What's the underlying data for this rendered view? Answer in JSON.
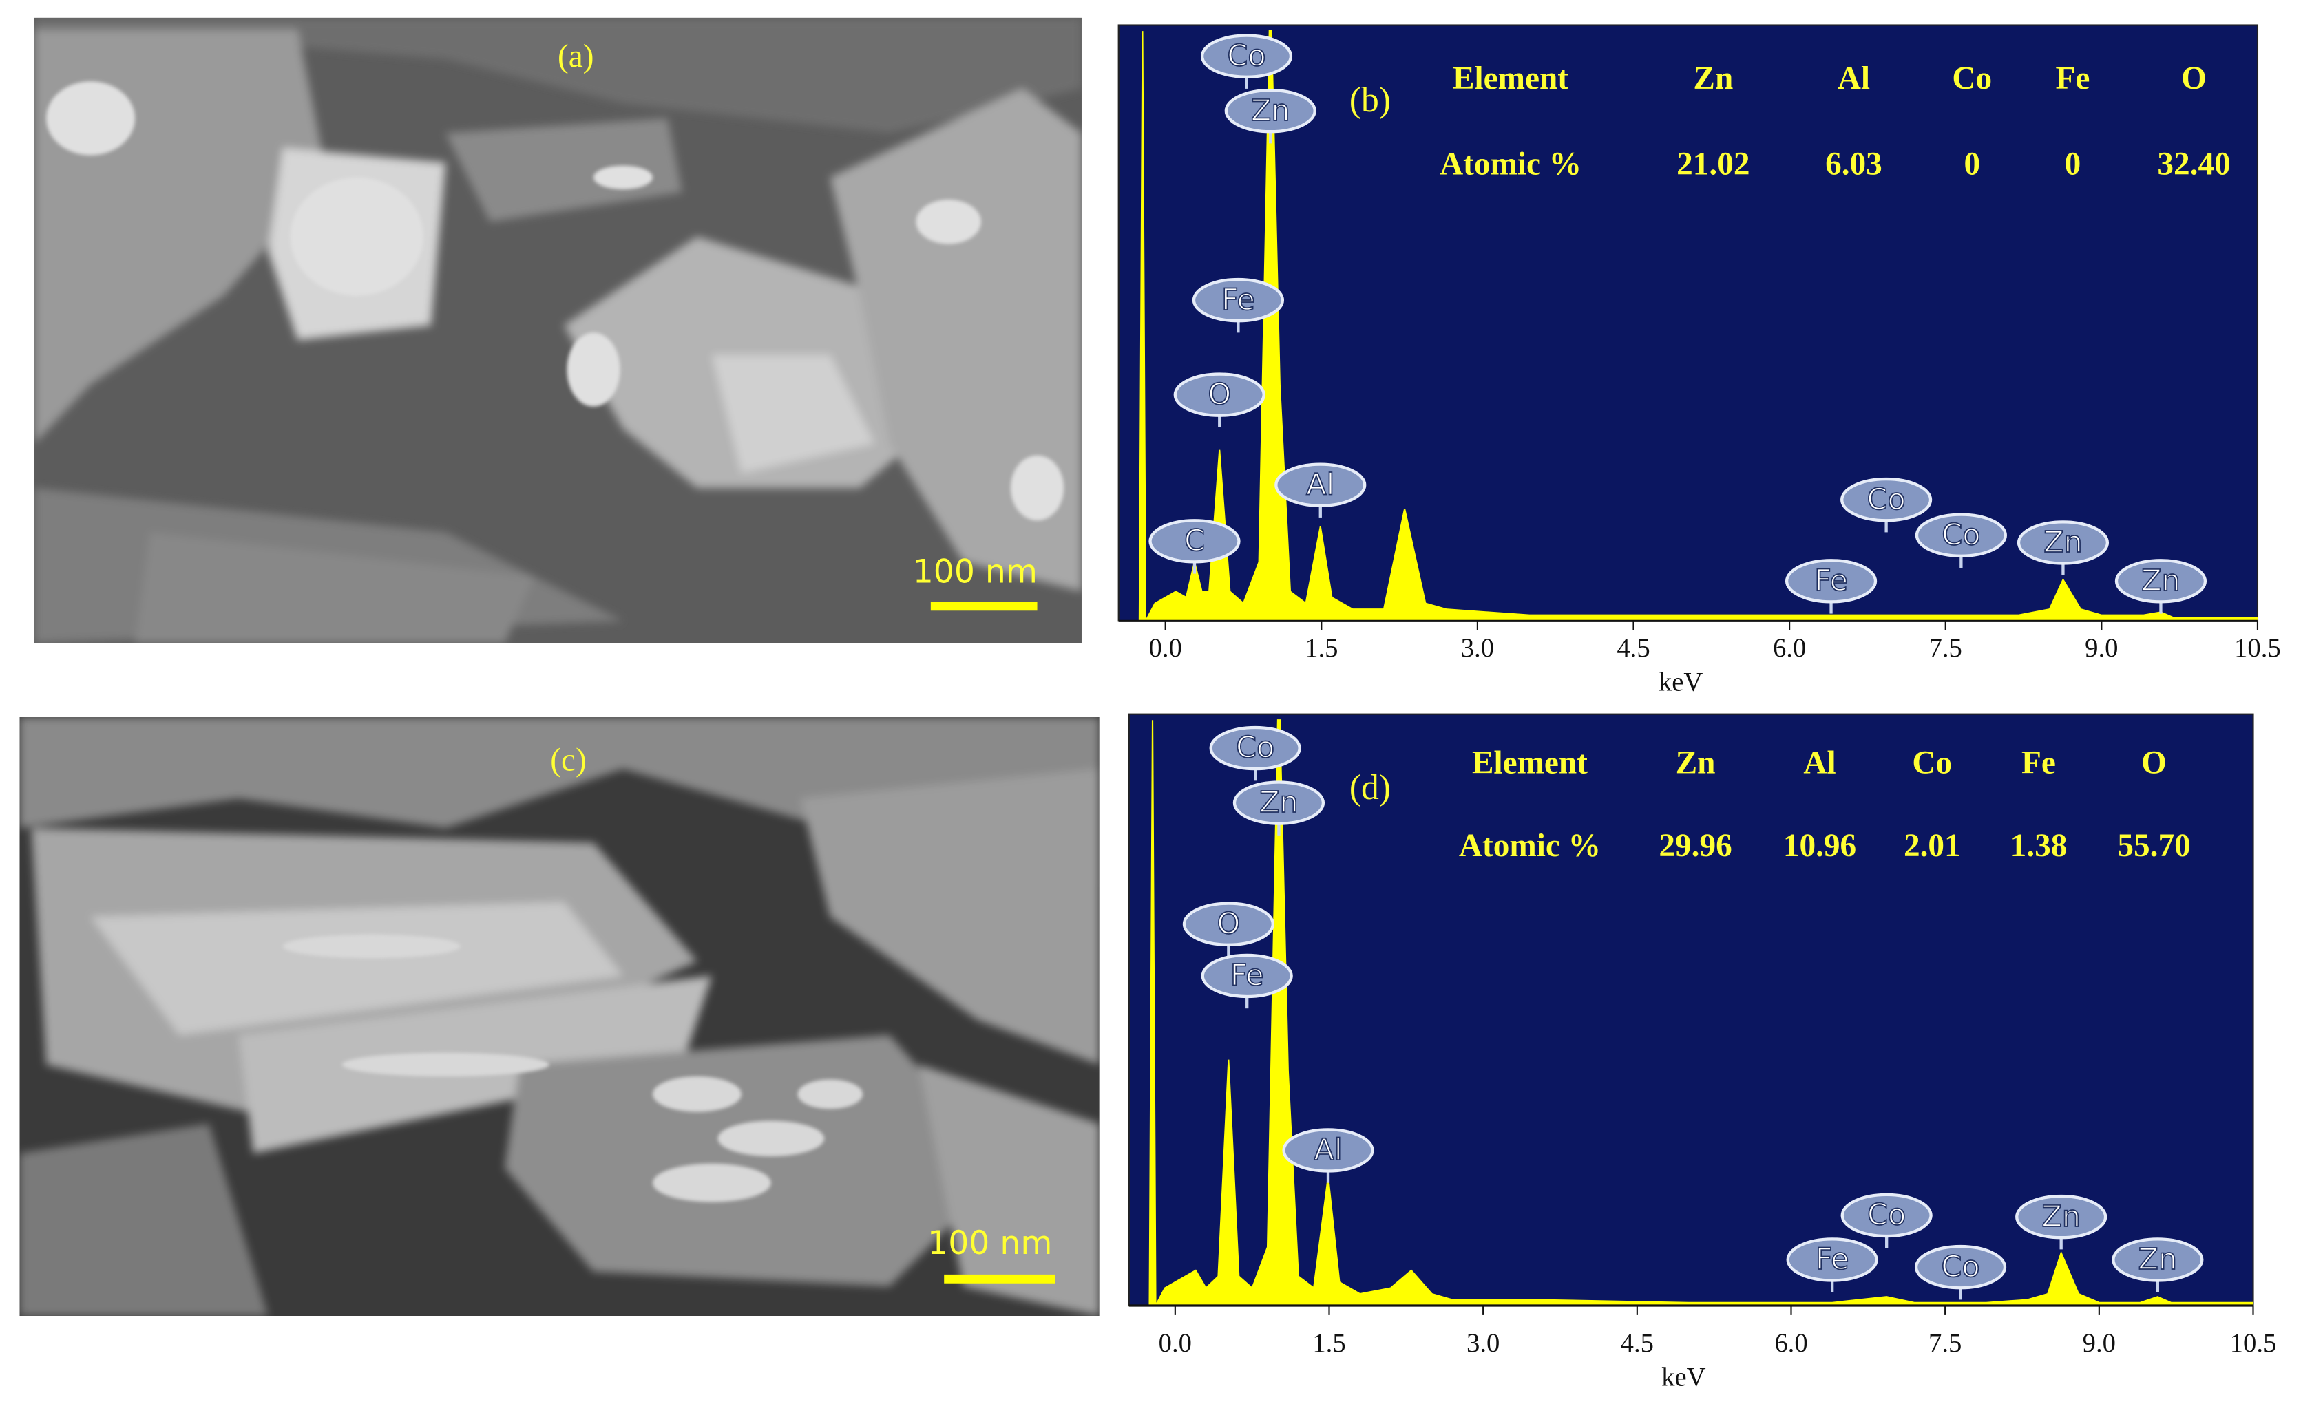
{
  "images": [
    {
      "label": "(a)",
      "scale_bar": "100 nm"
    },
    {
      "label": "(c)",
      "scale_bar": "100 nm"
    }
  ],
  "chart_data": [
    {
      "type": "area",
      "label": "(b)",
      "x_label": "keV",
      "color": "#ffff00",
      "background": "#0b1660",
      "x": [
        -0.45,
        -0.25,
        -0.22,
        -0.19,
        -0.1,
        0.1,
        0.2,
        0.28,
        0.35,
        0.42,
        0.52,
        0.62,
        0.75,
        0.9,
        1.0,
        1.02,
        1.1,
        1.2,
        1.35,
        1.49,
        1.6,
        1.8,
        2.1,
        2.3,
        2.5,
        2.7,
        3.5,
        5,
        7,
        7.9,
        8.2,
        8.5,
        8.63,
        8.8,
        9.0,
        9.4,
        9.57,
        9.7,
        10.5
      ],
      "values": [
        0,
        0,
        100,
        0,
        3,
        5,
        4,
        10,
        5,
        5,
        29,
        5,
        3,
        10,
        100,
        100,
        40,
        5,
        3,
        16,
        4,
        2,
        2,
        19,
        3,
        2,
        1,
        1,
        1,
        1,
        1,
        2,
        7,
        2,
        1,
        1,
        1.5,
        0.5,
        0.5
      ],
      "xlim": [
        -0.45,
        10.5
      ],
      "ylim": [
        0,
        100
      ],
      "xticks": [
        {
          "value": 0,
          "label": "0.0"
        },
        {
          "value": 1.5,
          "label": "1.5"
        },
        {
          "value": 3,
          "label": "3.0"
        },
        {
          "value": 4.5,
          "label": "4.5"
        },
        {
          "value": 6,
          "label": "6.0"
        },
        {
          "value": 7.5,
          "label": "7.5"
        },
        {
          "value": 9,
          "label": "9.0"
        },
        {
          "value": 10.5,
          "label": "10.5"
        }
      ],
      "peak_labels": [
        {
          "text": "Co",
          "x": 0.78
        },
        {
          "text": "Zn",
          "x": 1.01
        },
        {
          "text": "Fe",
          "x": 0.7
        },
        {
          "text": "O",
          "x": 0.52
        },
        {
          "text": "Al",
          "x": 1.49
        },
        {
          "text": "C",
          "x": 0.28
        },
        {
          "text": "Co",
          "x": 6.93
        },
        {
          "text": "Co",
          "x": 7.65
        },
        {
          "text": "Fe",
          "x": 6.4
        },
        {
          "text": "Zn",
          "x": 8.63
        },
        {
          "text": "Zn",
          "x": 9.57
        }
      ],
      "table": {
        "header": [
          "Element",
          "Zn",
          "Al",
          "Co",
          "Fe",
          "O"
        ],
        "rows": [
          [
            "Atomic %",
            "21.02",
            "6.03",
            "0",
            "0",
            "32.40"
          ]
        ]
      }
    },
    {
      "type": "area",
      "label": "(d)",
      "x_label": "keV",
      "color": "#ffff00",
      "background": "#0b1660",
      "x": [
        -0.45,
        -0.25,
        -0.22,
        -0.19,
        -0.1,
        0.1,
        0.2,
        0.3,
        0.42,
        0.52,
        0.62,
        0.75,
        0.9,
        1.0,
        1.02,
        1.1,
        1.2,
        1.35,
        1.49,
        1.6,
        1.8,
        2.1,
        2.3,
        2.5,
        2.7,
        3.5,
        5,
        6.4,
        6.93,
        7.2,
        7.9,
        8.3,
        8.5,
        8.63,
        8.8,
        9.0,
        9.4,
        9.57,
        9.7,
        10.5
      ],
      "values": [
        0,
        0,
        100,
        0,
        3,
        5,
        6,
        3,
        5,
        42,
        5,
        3,
        10,
        100,
        100,
        40,
        5,
        3,
        22,
        4,
        2,
        3,
        6,
        2,
        1,
        1,
        0.5,
        0.5,
        1.5,
        0.5,
        0.5,
        1,
        2,
        9,
        2,
        0.5,
        0.5,
        1.5,
        0.5,
        0.5
      ],
      "xlim": [
        -0.45,
        10.5
      ],
      "ylim": [
        0,
        100
      ],
      "xticks": [
        {
          "value": 0,
          "label": "0.0"
        },
        {
          "value": 1.5,
          "label": "1.5"
        },
        {
          "value": 3,
          "label": "3.0"
        },
        {
          "value": 4.5,
          "label": "4.5"
        },
        {
          "value": 6,
          "label": "6.0"
        },
        {
          "value": 7.5,
          "label": "7.5"
        },
        {
          "value": 9,
          "label": "9.0"
        },
        {
          "value": 10.5,
          "label": "10.5"
        }
      ],
      "peak_labels": [
        {
          "text": "Co",
          "x": 0.78
        },
        {
          "text": "Zn",
          "x": 1.01
        },
        {
          "text": "O",
          "x": 0.52
        },
        {
          "text": "Fe",
          "x": 0.7
        },
        {
          "text": "Al",
          "x": 1.49
        },
        {
          "text": "Fe",
          "x": 6.4
        },
        {
          "text": "Co",
          "x": 6.93
        },
        {
          "text": "Co",
          "x": 7.65
        },
        {
          "text": "Zn",
          "x": 8.63
        },
        {
          "text": "Zn",
          "x": 9.57
        }
      ],
      "table": {
        "header": [
          "Element",
          "Zn",
          "Al",
          "Co",
          "Fe",
          "O"
        ],
        "rows": [
          [
            "Atomic %",
            "29.96",
            "10.96",
            "2.01",
            "1.38",
            "55.70"
          ]
        ]
      }
    }
  ]
}
